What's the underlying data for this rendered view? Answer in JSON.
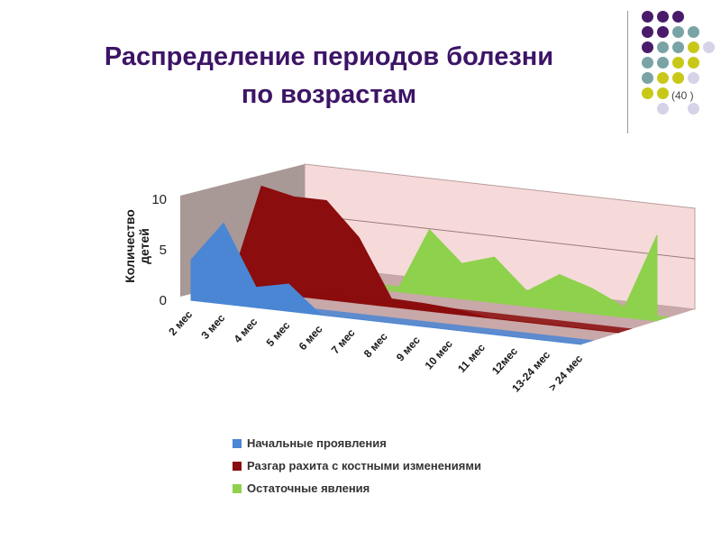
{
  "slide": {
    "title_line1": "Распределение  периодов  болезни",
    "title_line2": "по возрастам",
    "page_number": "(40 )"
  },
  "decoration": {
    "dot_colors": {
      "purple": "#4a1a6b",
      "teal": "#7aa3a5",
      "olive": "#c8c819",
      "lavender": "#d6d2e8"
    }
  },
  "chart_data": {
    "type": "area",
    "style": "3d-stacked-depth",
    "ylabel": "Количество детей",
    "xlabel": "",
    "ylim": [
      0,
      10
    ],
    "yticks": [
      0,
      5,
      10
    ],
    "categories": [
      "2 мес",
      "3 мес",
      "4 мес",
      "5 мес",
      "6 мес",
      "7 мес",
      "8 мес",
      "9 мес",
      "10 мес",
      "11 мес",
      "12мес",
      "13-24 мес",
      "> 24 мес"
    ],
    "series": [
      {
        "name": "Начальные проявления",
        "color": "#4a86d4",
        "values": [
          4,
          8,
          2,
          2.7,
          0,
          0,
          0,
          0,
          0,
          0,
          0,
          0,
          0
        ]
      },
      {
        "name": "Разгар рахита с костными изменениями",
        "color": "#8b0d0d",
        "values": [
          0,
          10.5,
          9.8,
          9.8,
          6.5,
          0.8,
          0.7,
          0.5,
          0,
          0,
          0,
          0,
          0
        ]
      },
      {
        "name": "Остаточные явления",
        "color": "#8ed14c",
        "values": [
          0,
          0,
          0,
          0,
          0,
          6.5,
          3.5,
          4.5,
          1.5,
          3.5,
          2.5,
          1,
          8.5
        ]
      }
    ],
    "wall_color": "#f6dada",
    "side_wall_color": "#a89896",
    "floor_color": "#c8a8a8",
    "grid": true,
    "legend_position": "bottom"
  }
}
